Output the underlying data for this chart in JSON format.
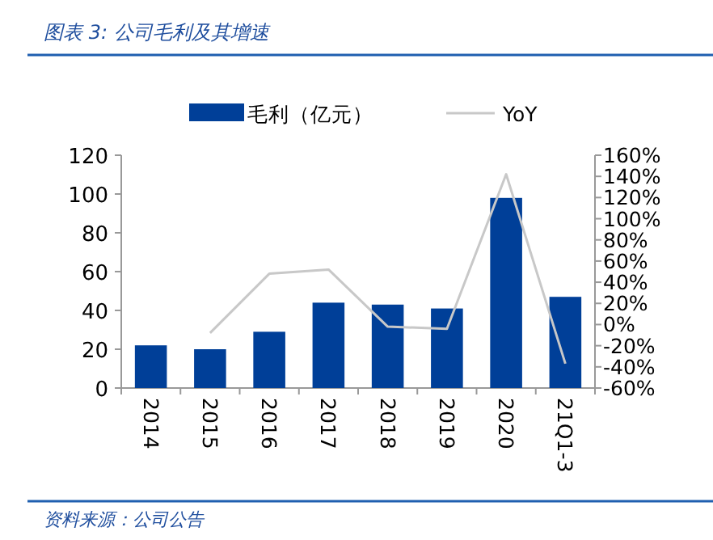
{
  "chart_data": {
    "type": "bar",
    "title": "图表 3: 公司毛利及其增速",
    "categories": [
      "2014",
      "2015",
      "2016",
      "2017",
      "2018",
      "2019",
      "2020",
      "21Q1-3"
    ],
    "series": [
      {
        "name": "毛利（亿元）",
        "color": "#003f98",
        "values": [
          22,
          20,
          29,
          44,
          43,
          41,
          98,
          47
        ]
      },
      {
        "name": "YoY",
        "type": "line",
        "axis": "y2",
        "color": "#c8c8c8",
        "values": [
          null,
          -8,
          48,
          52,
          -2,
          -4,
          142,
          -37
        ]
      }
    ],
    "ylim": [
      0,
      120
    ],
    "yticks": [
      0,
      20,
      40,
      60,
      80,
      100,
      120
    ],
    "y2lim": [
      -60,
      160
    ],
    "y2ticks": [
      {
        "value": -60,
        "label": "-60%"
      },
      {
        "value": -40,
        "label": "-40%"
      },
      {
        "value": -20,
        "label": "-20%"
      },
      {
        "value": 0,
        "label": "0%"
      },
      {
        "value": 20,
        "label": "20%"
      },
      {
        "value": 40,
        "label": "40%"
      },
      {
        "value": 60,
        "label": "60%"
      },
      {
        "value": 80,
        "label": "80%"
      },
      {
        "value": 100,
        "label": "100%"
      },
      {
        "value": 120,
        "label": "120%"
      },
      {
        "value": 140,
        "label": "140%"
      },
      {
        "value": 160,
        "label": "160%"
      }
    ],
    "legend": "top",
    "annotations": [
      "资料来源：公司公告"
    ]
  }
}
